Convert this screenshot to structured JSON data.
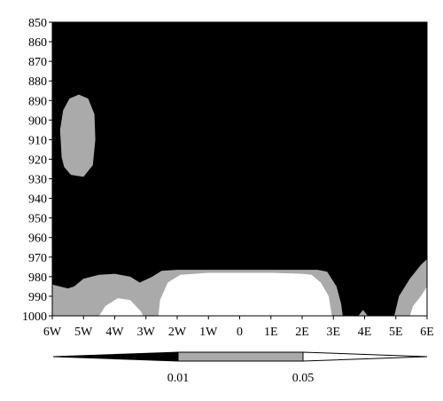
{
  "chart_data": {
    "type": "heatmap",
    "title": "",
    "xlabel": "",
    "ylabel": "",
    "x_ticks": [
      "6W",
      "5W",
      "4W",
      "3W",
      "2W",
      "1W",
      "0",
      "1E",
      "2E",
      "3E",
      "4E",
      "5E",
      "6E"
    ],
    "y_ticks": [
      "850",
      "860",
      "870",
      "880",
      "890",
      "900",
      "910",
      "920",
      "930",
      "940",
      "950",
      "960",
      "970",
      "980",
      "990",
      "1000"
    ],
    "xlim": [
      -6,
      6
    ],
    "ylim": [
      1000,
      850
    ],
    "colorbar": {
      "levels": [
        "0.01",
        "0.05"
      ],
      "colors": [
        "#000000",
        "#aaaaaa",
        "#ffffff"
      ],
      "orientation": "horizontal",
      "extend": "both"
    },
    "regions": [
      {
        "level": "0.01-0.05",
        "color": "#aaaaaa",
        "points": [
          [
            -5.7,
            919
          ],
          [
            -5.75,
            905
          ],
          [
            -5.65,
            895
          ],
          [
            -5.45,
            889
          ],
          [
            -5.15,
            887
          ],
          [
            -4.85,
            889
          ],
          [
            -4.65,
            897
          ],
          [
            -4.62,
            910
          ],
          [
            -4.7,
            923
          ],
          [
            -5.0,
            929
          ],
          [
            -5.4,
            928
          ],
          [
            -5.62,
            924
          ]
        ]
      },
      {
        "level": "0.01-0.05",
        "color": "#aaaaaa",
        "points": [
          [
            -6,
            984
          ],
          [
            -5.5,
            986
          ],
          [
            -5.3,
            985
          ],
          [
            -5.0,
            981
          ],
          [
            -4.5,
            979
          ],
          [
            -4.0,
            978.5
          ],
          [
            -3.5,
            980
          ],
          [
            -3.2,
            983
          ],
          [
            -2.8,
            980
          ],
          [
            -2.5,
            977
          ],
          [
            -2.0,
            976.5
          ],
          [
            0,
            976.5
          ],
          [
            2.5,
            976.5
          ],
          [
            2.8,
            977.5
          ],
          [
            3.1,
            985
          ],
          [
            3.25,
            994
          ],
          [
            3.3,
            1000
          ],
          [
            -6,
            1000
          ]
        ]
      },
      {
        "level": "0.01-0.05",
        "color": "#aaaaaa",
        "points": [
          [
            3.8,
            1000
          ],
          [
            3.95,
            997
          ],
          [
            4.1,
            1000
          ]
        ]
      },
      {
        "level": "0.01-0.05",
        "color": "#aaaaaa",
        "points": [
          [
            4.95,
            1000
          ],
          [
            5.1,
            990
          ],
          [
            5.45,
            981
          ],
          [
            5.8,
            974
          ],
          [
            6,
            971
          ],
          [
            6,
            1000
          ]
        ]
      },
      {
        "level": ">0.05",
        "color": "#ffffff",
        "points": [
          [
            -4.5,
            1000
          ],
          [
            -4.3,
            995
          ],
          [
            -3.9,
            991
          ],
          [
            -3.5,
            992
          ],
          [
            -3.15,
            998
          ],
          [
            -3.1,
            1000
          ]
        ]
      },
      {
        "level": ">0.05",
        "color": "#ffffff",
        "points": [
          [
            -2.6,
            1000
          ],
          [
            -2.55,
            992
          ],
          [
            -2.3,
            983
          ],
          [
            -1.9,
            979
          ],
          [
            -1.0,
            978
          ],
          [
            1.0,
            978
          ],
          [
            2.0,
            978.5
          ],
          [
            2.3,
            979
          ],
          [
            2.6,
            983
          ],
          [
            2.85,
            990
          ],
          [
            2.95,
            1000
          ]
        ]
      },
      {
        "level": ">0.05",
        "color": "#ffffff",
        "points": [
          [
            5.45,
            1000
          ],
          [
            5.55,
            995
          ],
          [
            5.8,
            990
          ],
          [
            6,
            985
          ],
          [
            6,
            1000
          ]
        ]
      }
    ]
  }
}
